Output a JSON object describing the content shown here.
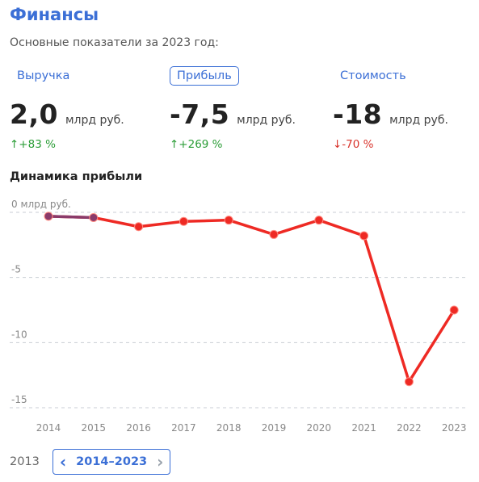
{
  "header": {
    "title": "Финансы",
    "subtitle": "Основные показатели за 2023 год:"
  },
  "metrics": [
    {
      "tab": "Выручка",
      "value": "2,0",
      "unit": "млрд руб.",
      "change": "↑+83 %",
      "direction": "up",
      "active": false
    },
    {
      "tab": "Прибыль",
      "value": "-7,5",
      "unit": "млрд руб.",
      "change": "↑+269 %",
      "direction": "up",
      "active": true
    },
    {
      "tab": "Стоимость",
      "value": "-18",
      "unit": "млрд руб.",
      "change": "↓-70 %",
      "direction": "down",
      "active": false
    }
  ],
  "chart_section": {
    "title": "Динамика прибыли"
  },
  "chart_data": {
    "type": "line",
    "title": "Динамика прибыли",
    "x": [
      "2014",
      "2015",
      "2016",
      "2017",
      "2018",
      "2019",
      "2020",
      "2021",
      "2022",
      "2023"
    ],
    "series": [
      {
        "values": [
          -0.3,
          -0.4,
          -1.1,
          -0.7,
          -0.6,
          -1.7,
          -0.6,
          -1.8,
          -13.0,
          -7.5
        ],
        "color": "#ee2a24"
      }
    ],
    "highlight_segment_color": "#8a3a6a",
    "yticks": [
      0,
      -5,
      -10,
      -15
    ],
    "ytick_labels": [
      "0 млрд руб.",
      "-5",
      "-10",
      "-15"
    ],
    "ylim": [
      -15,
      0
    ],
    "grid": true
  },
  "pager": {
    "prev_label": "2013",
    "range_label": "2014–2023",
    "left_icon": "chevron-left-icon",
    "right_icon": "chevron-right-icon"
  }
}
